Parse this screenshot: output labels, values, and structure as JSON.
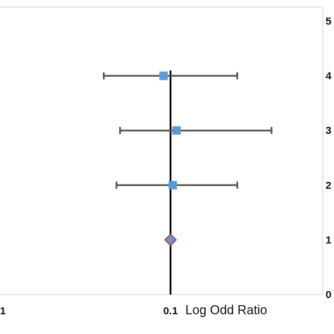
{
  "chart_data": {
    "type": "scatter",
    "title": "",
    "xlabel": "Log Odd Ratio",
    "ylabel": "",
    "x_scale": "log",
    "x_tick_labels": [
      "1",
      "0.1"
    ],
    "y_tick_labels": [
      "0",
      "1",
      "2",
      "3",
      "4",
      "5"
    ],
    "ylim": [
      0,
      5
    ],
    "grid": false,
    "reference_line_x": 0.1,
    "series": [
      {
        "marker": "square",
        "color": "#5b9bd5",
        "points": [
          {
            "x": 0.11,
            "y": 4,
            "ci_low": 0.04,
            "ci_high": 0.25
          },
          {
            "x": 0.092,
            "y": 3,
            "ci_low": 0.025,
            "ci_high": 0.2
          },
          {
            "x": 0.097,
            "y": 2,
            "ci_low": 0.04,
            "ci_high": 0.21
          }
        ]
      },
      {
        "marker": "diamond",
        "color": "#5b9bd5",
        "edge_color": "#d9262c",
        "points": [
          {
            "x": 0.1,
            "y": 1
          }
        ]
      }
    ],
    "colors": {
      "error_bar": "#555555",
      "reference_line": "#000000",
      "plot_border": "#d0d0d0"
    }
  }
}
